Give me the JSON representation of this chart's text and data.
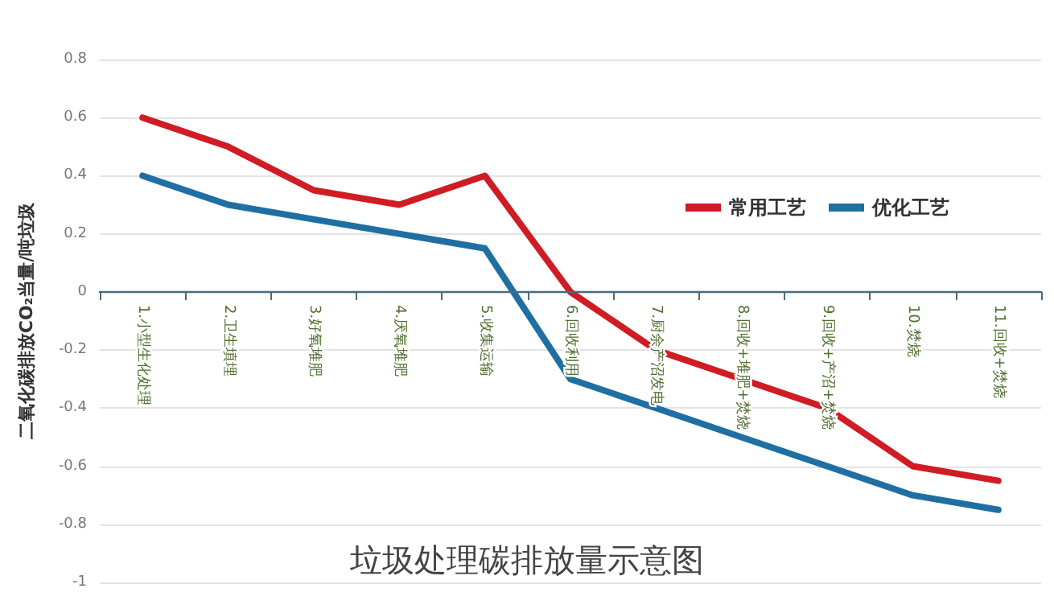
{
  "chart_data": {
    "type": "line",
    "title": "垃圾处理碳排放量示意图",
    "ylabel": "二氧化碳排放CO₂当量/吨垃圾",
    "categories": [
      "1.小型生化处理",
      "2.卫生填埋",
      "3.好氧堆肥",
      "4.厌氧堆肥",
      "5.收集运输",
      "6.回收利用",
      "7.厨余产沼发电",
      "8.回收+堆肥+焚烧",
      "9.回收+产沼+焚烧",
      "10.焚烧",
      "11.回收+焚烧"
    ],
    "series": [
      {
        "name": "常用工艺",
        "color": "#d01c24",
        "values": [
          0.6,
          0.5,
          0.35,
          0.3,
          0.4,
          0,
          -0.2,
          -0.3,
          -0.4,
          -0.6,
          -0.65
        ]
      },
      {
        "name": "优化工艺",
        "color": "#1f6fa3",
        "values": [
          0.4,
          0.3,
          0.25,
          0.2,
          0.15,
          -0.3,
          -0.4,
          -0.5,
          -0.6,
          -0.7,
          -0.75
        ]
      }
    ],
    "ylim": [
      -1,
      0.8
    ],
    "yticks": [
      -1,
      -0.8,
      -0.6,
      -0.4,
      -0.2,
      0,
      0.2,
      0.4,
      0.6,
      0.8
    ],
    "grid": "y",
    "legend": "right",
    "marker": "none",
    "line_style": "solid"
  }
}
